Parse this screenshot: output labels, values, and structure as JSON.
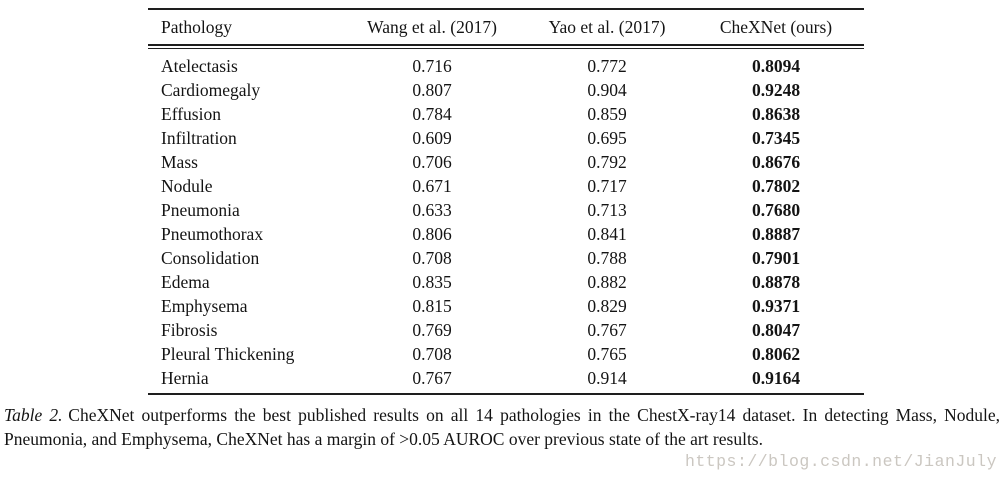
{
  "table": {
    "headers": [
      "Pathology",
      "Wang et al. (2017)",
      "Yao et al. (2017)",
      "CheXNet (ours)"
    ],
    "rows": [
      {
        "pathology": "Atelectasis",
        "wang": "0.716",
        "yao": "0.772",
        "chexnet": "0.8094"
      },
      {
        "pathology": "Cardiomegaly",
        "wang": "0.807",
        "yao": "0.904",
        "chexnet": "0.9248"
      },
      {
        "pathology": "Effusion",
        "wang": "0.784",
        "yao": "0.859",
        "chexnet": "0.8638"
      },
      {
        "pathology": "Infiltration",
        "wang": "0.609",
        "yao": "0.695",
        "chexnet": "0.7345"
      },
      {
        "pathology": "Mass",
        "wang": "0.706",
        "yao": "0.792",
        "chexnet": "0.8676"
      },
      {
        "pathology": "Nodule",
        "wang": "0.671",
        "yao": "0.717",
        "chexnet": "0.7802"
      },
      {
        "pathology": "Pneumonia",
        "wang": "0.633",
        "yao": "0.713",
        "chexnet": "0.7680"
      },
      {
        "pathology": "Pneumothorax",
        "wang": "0.806",
        "yao": "0.841",
        "chexnet": "0.8887"
      },
      {
        "pathology": "Consolidation",
        "wang": "0.708",
        "yao": "0.788",
        "chexnet": "0.7901"
      },
      {
        "pathology": "Edema",
        "wang": "0.835",
        "yao": "0.882",
        "chexnet": "0.8878"
      },
      {
        "pathology": "Emphysema",
        "wang": "0.815",
        "yao": "0.829",
        "chexnet": "0.9371"
      },
      {
        "pathology": "Fibrosis",
        "wang": "0.769",
        "yao": "0.767",
        "chexnet": "0.8047"
      },
      {
        "pathology": "Pleural Thickening",
        "wang": "0.708",
        "yao": "0.765",
        "chexnet": "0.8062"
      },
      {
        "pathology": "Hernia",
        "wang": "0.767",
        "yao": "0.914",
        "chexnet": "0.9164"
      }
    ]
  },
  "caption": {
    "label": "Table 2.",
    "text": "CheXNet outperforms the best published results on all 14 pathologies in the ChestX-ray14 dataset. In detecting Mass, Nodule, Pneumonia, and Emphysema, CheXNet has a margin of >0.05 AUROC over previous state of the art results."
  },
  "watermark": "https://blog.csdn.net/JianJuly",
  "colors": {
    "text": "#141414",
    "rule": "#1e1e1e",
    "watermark": "#cbc7c1",
    "background": "#ffffff"
  }
}
